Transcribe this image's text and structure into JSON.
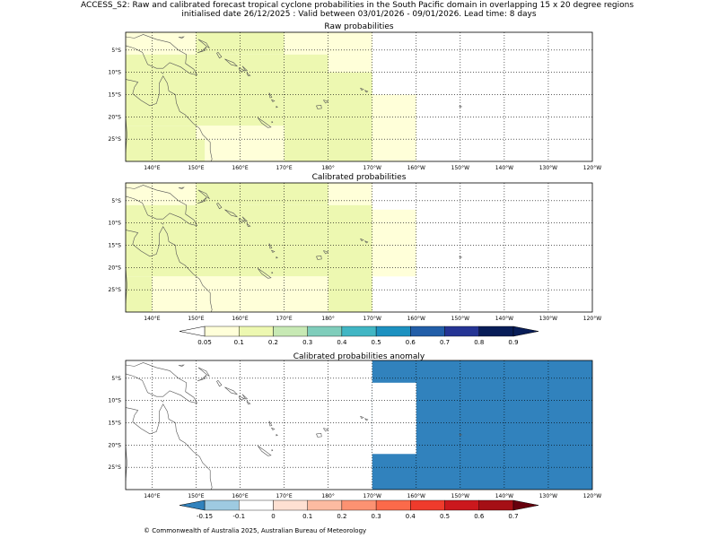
{
  "title_line1": "ACCESS_S2: Raw and calibrated forecast tropical cyclone probabilities in the South Pacific domain in overlapping 15 x 20 degree regions",
  "title_line2": "initialised date 26/12/2025 :  Valid between 03/01/2026 - 09/01/2026. Lead time: 8 days",
  "copyright": "© Commonwealth of Australia 2025, Australian Bureau of Meteorology",
  "colors": {
    "prob": [
      "#ffffd9",
      "#edf8b1",
      "#c7e9b4",
      "#7fcdbb",
      "#41b6c4",
      "#1d91c0",
      "#225ea8",
      "#253494",
      "#081d58"
    ],
    "prob_under": "#ffffff",
    "anom": [
      "#3182bd",
      "#9ecae1",
      "#ffffff",
      "#fee0d2",
      "#fcbba1",
      "#fc9272",
      "#fb6a4a",
      "#ef3b2c",
      "#cb181d",
      "#a50f15",
      "#67000d"
    ],
    "land_outline": "#555555",
    "grid": "#000000"
  },
  "chart_data": [
    {
      "type": "heatmap",
      "title": "Raw probabilities",
      "xlabel": "",
      "ylabel": "",
      "xlim": [
        134,
        240
      ],
      "ylim": [
        -30,
        -1
      ],
      "grid": true,
      "xticks": [
        140,
        150,
        160,
        170,
        180,
        190,
        200,
        210,
        220,
        230,
        240
      ],
      "xtick_labels": [
        "140°E",
        "150°E",
        "160°E",
        "170°E",
        "180°",
        "170°W",
        "160°W",
        "150°W",
        "140°W",
        "130°W",
        "120°W"
      ],
      "yticks": [
        -5,
        -10,
        -15,
        -20,
        -25
      ],
      "ytick_labels": [
        "5°S",
        "10°S",
        "15°S",
        "20°S",
        "25°S"
      ],
      "cells": [
        {
          "lon": [
            134,
            150
          ],
          "lat": [
            -6,
            -1
          ],
          "value": 0.05
        },
        {
          "lon": [
            150,
            170
          ],
          "lat": [
            -6,
            -1
          ],
          "value": 0.1
        },
        {
          "lon": [
            170,
            190
          ],
          "lat": [
            -6,
            -1
          ],
          "value": 0.05
        },
        {
          "lon": [
            134,
            170
          ],
          "lat": [
            -22,
            -6
          ],
          "value": 0.1
        },
        {
          "lon": [
            170,
            180
          ],
          "lat": [
            -30,
            -6
          ],
          "value": 0.1
        },
        {
          "lon": [
            180,
            190
          ],
          "lat": [
            -10,
            -6
          ],
          "value": 0.05
        },
        {
          "lon": [
            180,
            190
          ],
          "lat": [
            -30,
            -10
          ],
          "value": 0.1
        },
        {
          "lon": [
            190,
            200
          ],
          "lat": [
            -30,
            -15
          ],
          "value": 0.05
        },
        {
          "lon": [
            134,
            150
          ],
          "lat": [
            -30,
            -22
          ],
          "value": 0.1
        },
        {
          "lon": [
            150,
            170
          ],
          "lat": [
            -25,
            -22
          ],
          "value": 0.05
        },
        {
          "lon": [
            150,
            152
          ],
          "lat": [
            -30,
            -25
          ],
          "value": 0.1
        },
        {
          "lon": [
            152,
            170
          ],
          "lat": [
            -30,
            -25
          ],
          "value": 0.05
        }
      ]
    },
    {
      "type": "heatmap",
      "title": "Calibrated probabilities",
      "xlabel": "",
      "ylabel": "",
      "xlim": [
        134,
        240
      ],
      "ylim": [
        -30,
        -1
      ],
      "grid": true,
      "xticks": [
        140,
        150,
        160,
        170,
        180,
        190,
        200,
        210,
        220,
        230,
        240
      ],
      "xtick_labels": [
        "140°E",
        "150°E",
        "160°E",
        "170°E",
        "180°",
        "170°W",
        "160°W",
        "150°W",
        "140°W",
        "130°W",
        "120°W"
      ],
      "yticks": [
        -5,
        -10,
        -15,
        -20,
        -25
      ],
      "ytick_labels": [
        "5°S",
        "10°S",
        "15°S",
        "20°S",
        "25°S"
      ],
      "cells": [
        {
          "lon": [
            134,
            150
          ],
          "lat": [
            -6,
            -1
          ],
          "value": 0.05
        },
        {
          "lon": [
            150,
            180
          ],
          "lat": [
            -6,
            -1
          ],
          "value": 0.1
        },
        {
          "lon": [
            180,
            190
          ],
          "lat": [
            -6,
            -1
          ],
          "value": 0.05
        },
        {
          "lon": [
            134,
            180
          ],
          "lat": [
            -22,
            -6
          ],
          "value": 0.1
        },
        {
          "lon": [
            180,
            190
          ],
          "lat": [
            -30,
            -6
          ],
          "value": 0.1
        },
        {
          "lon": [
            190,
            200
          ],
          "lat": [
            -22,
            -7
          ],
          "value": 0.05
        },
        {
          "lon": [
            134,
            140
          ],
          "lat": [
            -30,
            -22
          ],
          "value": 0.1
        },
        {
          "lon": [
            140,
            180
          ],
          "lat": [
            -30,
            -22
          ],
          "value": 0.05
        }
      ]
    },
    {
      "type": "heatmap",
      "title": "Calibrated probabilities anomaly",
      "xlabel": "",
      "ylabel": "",
      "xlim": [
        134,
        240
      ],
      "ylim": [
        -30,
        -1
      ],
      "grid": true,
      "xticks": [
        140,
        150,
        160,
        170,
        180,
        190,
        200,
        210,
        220,
        230,
        240
      ],
      "xtick_labels": [
        "140°E",
        "150°E",
        "160°E",
        "170°E",
        "180°",
        "170°W",
        "160°W",
        "150°W",
        "140°W",
        "130°W",
        "120°W"
      ],
      "yticks": [
        -5,
        -10,
        -15,
        -20,
        -25
      ],
      "ytick_labels": [
        "5°S",
        "10°S",
        "15°S",
        "20°S",
        "25°S"
      ],
      "cells": [
        {
          "lon": [
            134,
            150
          ],
          "lat": [
            -6,
            -1
          ],
          "value": -0.1
        },
        {
          "lon": [
            180,
            190
          ],
          "lat": [
            -6,
            -1
          ],
          "value": -0.1
        },
        {
          "lon": [
            190,
            240
          ],
          "lat": [
            -30,
            -1
          ],
          "value": -0.2
        },
        {
          "lon": [
            190,
            200
          ],
          "lat": [
            -22,
            -6
          ],
          "value": -0.1
        },
        {
          "lon": [
            140,
            180
          ],
          "lat": [
            -30,
            -22
          ],
          "value": -0.1
        }
      ]
    }
  ],
  "colorbars": [
    {
      "name": "probability-colorbar",
      "tick_labels": [
        "0.05",
        "0.1",
        "0.2",
        "0.3",
        "0.4",
        "0.5",
        "0.6",
        "0.7",
        "0.8",
        "0.9"
      ]
    },
    {
      "name": "anomaly-colorbar",
      "tick_labels": [
        "-0.15",
        "-0.1",
        "0",
        "0.1",
        "0.2",
        "0.3",
        "0.4",
        "0.5",
        "0.6",
        "0.7"
      ]
    }
  ]
}
